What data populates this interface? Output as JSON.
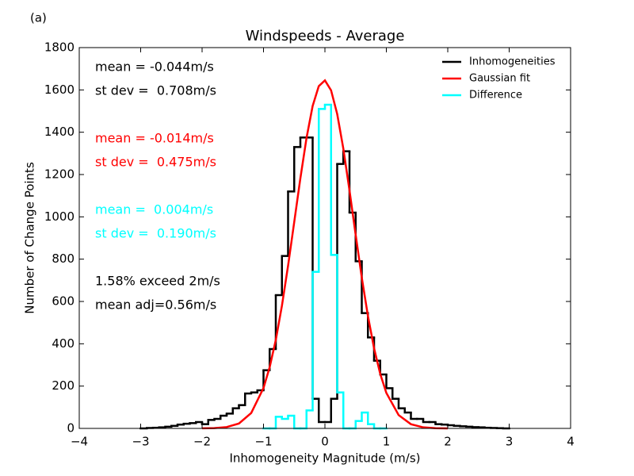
{
  "chart_data": {
    "type": "histogram",
    "panel_label": "(a)",
    "title": "Windspeeds - Average",
    "x_label": "Inhomogeneity Magnitude (m/s)",
    "y_label": "Number of Change Points",
    "xlim": [
      -4,
      4
    ],
    "ylim": [
      0,
      1800
    ],
    "xticks": [
      {
        "value": -4,
        "label": "−4"
      },
      {
        "value": -3,
        "label": "−3"
      },
      {
        "value": -2,
        "label": "−2"
      },
      {
        "value": -1,
        "label": "−1"
      },
      0,
      1,
      2,
      3,
      4
    ],
    "yticks": [
      0,
      200,
      400,
      600,
      800,
      1000,
      1200,
      1400,
      1600,
      1800
    ],
    "legend": "upper right",
    "series": [
      {
        "name": "Inhomogeneities",
        "color": "#000000",
        "type": "histogram",
        "bins": [
          -3.0,
          -2.9,
          -2.8,
          -2.7,
          -2.6,
          -2.5,
          -2.4,
          -2.3,
          -2.2,
          -2.1,
          -2.0,
          -1.9,
          -1.8,
          -1.7,
          -1.6,
          -1.5,
          -1.4,
          -1.3,
          -1.2,
          -1.1,
          -1.0,
          -0.9,
          -0.8,
          -0.7,
          -0.6,
          -0.5,
          -0.4,
          -0.3,
          -0.2,
          -0.1,
          0.0,
          0.1,
          0.2,
          0.3,
          0.4,
          0.5,
          0.6,
          0.7,
          0.8,
          0.9,
          1.0,
          1.1,
          1.2,
          1.3,
          1.4,
          1.5,
          1.6,
          1.7,
          1.8,
          1.9,
          2.0,
          2.1,
          2.2,
          2.3,
          2.4,
          2.5,
          2.6,
          2.7,
          2.8,
          2.9,
          3.0
        ],
        "values": [
          0,
          2,
          3,
          5,
          8,
          12,
          18,
          22,
          25,
          30,
          20,
          40,
          45,
          60,
          70,
          95,
          110,
          165,
          170,
          180,
          275,
          375,
          630,
          815,
          1120,
          1330,
          1375,
          1375,
          140,
          30,
          30,
          140,
          1250,
          1310,
          1020,
          790,
          545,
          430,
          320,
          255,
          190,
          140,
          95,
          75,
          45,
          45,
          30,
          30,
          20,
          18,
          15,
          12,
          10,
          8,
          6,
          5,
          3,
          2,
          1,
          0
        ]
      },
      {
        "name": "Gaussian fit",
        "color": "#ff0000",
        "type": "line",
        "x": [
          -2.0,
          -1.8,
          -1.6,
          -1.4,
          -1.2,
          -1.0,
          -0.9,
          -0.8,
          -0.7,
          -0.6,
          -0.5,
          -0.4,
          -0.3,
          -0.2,
          -0.1,
          0.0,
          0.1,
          0.2,
          0.3,
          0.4,
          0.5,
          0.6,
          0.7,
          0.8,
          0.9,
          1.0,
          1.2,
          1.4,
          1.6,
          1.8,
          2.0
        ],
        "values": [
          0.3,
          1.4,
          6.3,
          23,
          73,
          191,
          289,
          418,
          580,
          769,
          975,
          1182,
          1372,
          1524,
          1618,
          1645,
          1598,
          1486,
          1322,
          1125,
          916,
          713,
          532,
          379,
          258,
          168,
          63,
          20,
          5,
          1.1,
          0.2
        ]
      },
      {
        "name": "Difference",
        "color": "#00ffff",
        "type": "histogram",
        "bins": [
          -1.0,
          -0.9,
          -0.8,
          -0.7,
          -0.6,
          -0.5,
          -0.4,
          -0.3,
          -0.2,
          -0.1,
          0.0,
          0.1,
          0.2,
          0.3,
          0.4,
          0.5,
          0.6,
          0.7,
          0.8,
          0.9,
          1.0
        ],
        "values": [
          0,
          0,
          55,
          45,
          60,
          0,
          0,
          85,
          740,
          1510,
          1530,
          820,
          170,
          0,
          0,
          35,
          75,
          20,
          0,
          0
        ]
      }
    ],
    "annotations": [
      {
        "text": "mean = -0.044m/s",
        "color": "#000000"
      },
      {
        "text": "st dev =  0.708m/s",
        "color": "#000000"
      },
      {
        "text": "mean = -0.014m/s",
        "color": "#ff0000"
      },
      {
        "text": "st dev =  0.475m/s",
        "color": "#ff0000"
      },
      {
        "text": "mean =  0.004m/s",
        "color": "#00ffff"
      },
      {
        "text": "st dev =  0.190m/s",
        "color": "#00ffff"
      },
      {
        "text": "1.58% exceed 2m/s",
        "color": "#000000"
      },
      {
        "text": "mean adj=0.56m/s",
        "color": "#000000"
      }
    ]
  }
}
